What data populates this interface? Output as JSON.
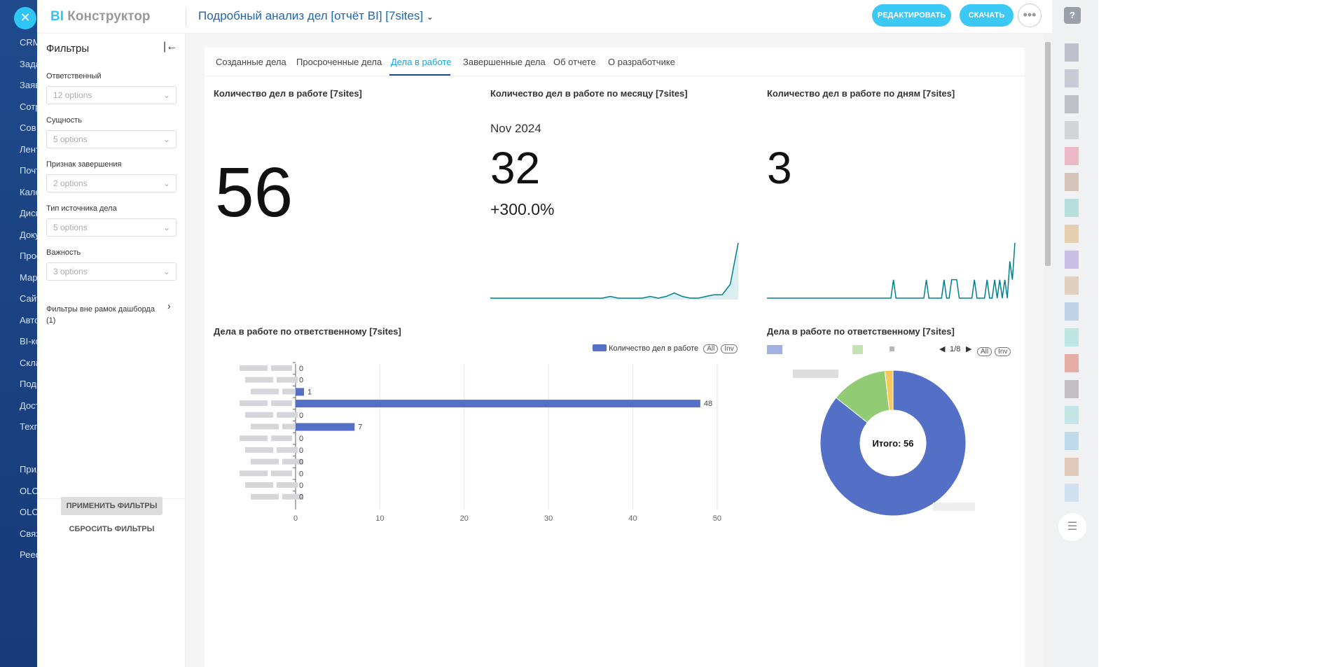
{
  "nav": {
    "items": [
      "CRM",
      "Зада",
      "Заяв",
      "Сотр",
      "Сов",
      "Лент",
      "Почт",
      "Кале",
      "Диск",
      "Доку",
      "Прое",
      "Мар",
      "Сайт",
      "Авто",
      "BI-ко",
      "Скла",
      "Подп",
      "Дост",
      "Техп",
      "",
      "Прил",
      "OLCH",
      "OLCH",
      "Связ",
      "Реес"
    ]
  },
  "header": {
    "logo_bi": "BI",
    "logo_text": "Конструктор",
    "title": "Подробный анализ дел [отчёт BI] [7sites]",
    "edit": "РЕДАКТИРОВАТЬ",
    "download": "СКАЧАТЬ",
    "more": "•••"
  },
  "filters": {
    "title": "Фильтры",
    "items": [
      {
        "label": "Ответственный",
        "value": "12 options"
      },
      {
        "label": "Сущность",
        "value": "5 options"
      },
      {
        "label": "Признак завершения",
        "value": "2 options"
      },
      {
        "label": "Тип источника дела",
        "value": "5 options"
      },
      {
        "label": "Важность",
        "value": "3 options"
      }
    ],
    "outside": "Фильтры вне рамок дашборда",
    "outside_count": "(1)",
    "apply": "ПРИМЕНИТЬ ФИЛЬТРЫ",
    "reset": "СБРОСИТЬ ФИЛЬТРЫ"
  },
  "tabs": [
    "Созданные дела",
    "Просроченные дела",
    "Дела в работе",
    "Завершенные дела",
    "Об отчете",
    "О разработчике"
  ],
  "kpi1": {
    "title": "Количество дел в работе [7sites]",
    "value": "56"
  },
  "kpi2": {
    "title": "Количество дел в работе по месяцу [7sites]",
    "period": "Nov 2024",
    "value": "32",
    "delta": "+300.0%",
    "trend": [
      0,
      0,
      0,
      0,
      0,
      0,
      0,
      0,
      0,
      0,
      0,
      0,
      0,
      0,
      0,
      1,
      0,
      0,
      0,
      0,
      1,
      0,
      1,
      3,
      1,
      0,
      0,
      1,
      2,
      2,
      8,
      32
    ]
  },
  "kpi3": {
    "title": "Количество дел в работе по дням [7sites]",
    "value": "3",
    "trend": [
      0,
      0,
      0,
      0,
      0,
      0,
      0,
      0,
      0,
      0,
      0,
      0,
      0,
      0,
      0,
      0,
      0,
      0,
      0,
      0,
      0,
      0,
      0,
      0,
      0,
      0,
      0,
      0,
      0,
      0,
      0,
      0,
      0,
      0,
      0,
      0,
      0,
      0,
      0,
      0,
      0,
      0,
      0,
      0,
      0,
      0,
      0,
      0,
      0,
      0,
      1,
      0,
      0,
      0,
      0,
      0,
      0,
      0,
      0,
      0,
      0,
      0,
      0,
      1,
      0,
      0,
      0,
      0,
      0,
      0,
      1,
      0,
      0,
      1,
      1,
      1,
      0,
      0,
      0,
      0,
      0,
      0,
      1,
      0,
      0,
      0,
      0,
      1,
      0,
      0,
      1,
      0,
      1,
      0,
      1,
      0,
      2,
      1,
      3
    ]
  },
  "bar": {
    "title": "Дела в работе по ответственному [7sites]",
    "legend": "Количество дел в работе",
    "all": "All",
    "inv": "Inv",
    "values": [
      0,
      0,
      1,
      48,
      0,
      7,
      0,
      0,
      0,
      0,
      0,
      0
    ],
    "xticks": [
      0,
      10,
      20,
      30,
      40,
      50
    ],
    "xmax": 52,
    "color": "#5470c6"
  },
  "pie": {
    "title": "Дела в работе по ответственному [7sites]",
    "page": "1/8",
    "all": "All",
    "inv": "Inv",
    "center": "Итого: 56",
    "values": [
      48,
      7,
      1
    ],
    "colors": [
      "#5470c6",
      "#91cc75",
      "#fac858"
    ]
  },
  "help": "?"
}
